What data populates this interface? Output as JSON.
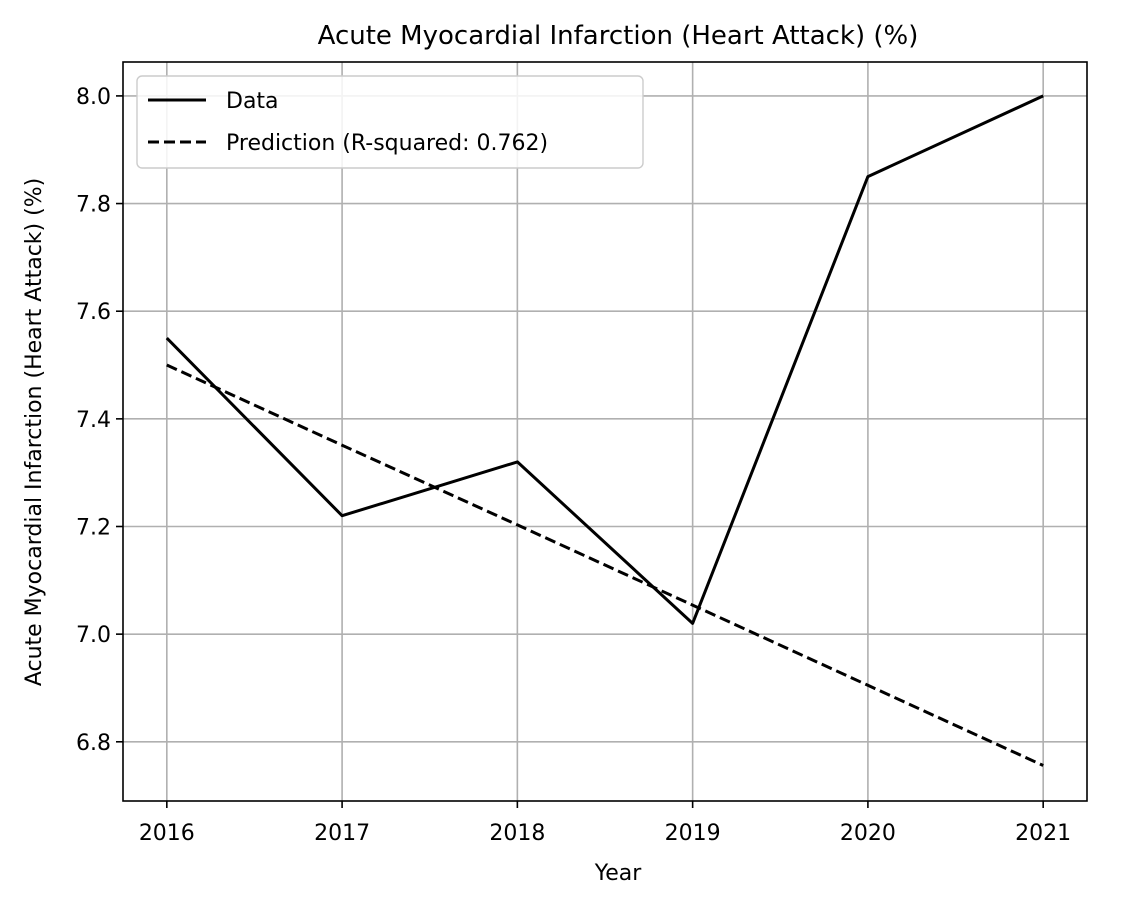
{
  "chart_data": {
    "type": "line",
    "title": "Acute Myocardial Infarction (Heart Attack) (%)",
    "xlabel": "Year",
    "ylabel": "Acute Myocardial Infarction (Heart Attack) (%)",
    "x": [
      2016,
      2017,
      2018,
      2019,
      2020,
      2021
    ],
    "x_tick_labels": [
      "2016",
      "2017",
      "2018",
      "2019",
      "2020",
      "2021"
    ],
    "y_ticks": [
      6.8,
      7.0,
      7.2,
      7.4,
      7.6,
      7.8,
      8.0
    ],
    "y_tick_labels": [
      "6.8",
      "7.0",
      "7.2",
      "7.4",
      "7.6",
      "7.8",
      "8.0"
    ],
    "xlim": [
      2015.75,
      2021.25
    ],
    "ylim": [
      6.69,
      8.063
    ],
    "grid": true,
    "legend_position": "top-left",
    "series": [
      {
        "name": "Data",
        "style": "solid",
        "color": "#000000",
        "values": [
          7.55,
          7.22,
          7.32,
          7.02,
          7.85,
          8.0
        ]
      },
      {
        "name": "Prediction (R-squared: 0.762)",
        "style": "dashed",
        "color": "#000000",
        "values": [
          7.5,
          7.351,
          7.203,
          7.054,
          6.905,
          6.756
        ]
      }
    ]
  }
}
